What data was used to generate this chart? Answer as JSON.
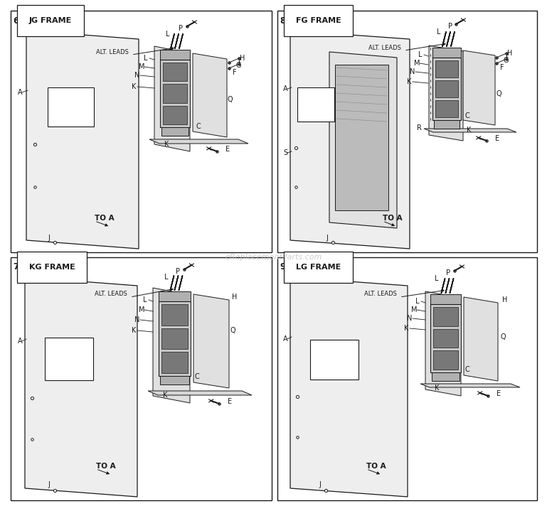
{
  "background_color": "#ffffff",
  "fig_width": 7.5,
  "fig_height": 6.99,
  "line_color": "#1a1a1a",
  "watermark": "eReplacementParts.com",
  "panels": [
    {
      "num": "6.)",
      "title": "JG FRAME",
      "col": 0,
      "row": 1,
      "has_S": false,
      "has_R": false
    },
    {
      "num": "8.)",
      "title": "FG FRAME",
      "col": 1,
      "row": 1,
      "has_S": true,
      "has_R": true
    },
    {
      "num": "7.)",
      "title": "KG FRAME",
      "col": 0,
      "row": 0,
      "has_S": false,
      "has_R": false
    },
    {
      "num": "9.)",
      "title": "LG FRAME",
      "col": 1,
      "row": 0,
      "has_S": false,
      "has_R": false
    }
  ]
}
